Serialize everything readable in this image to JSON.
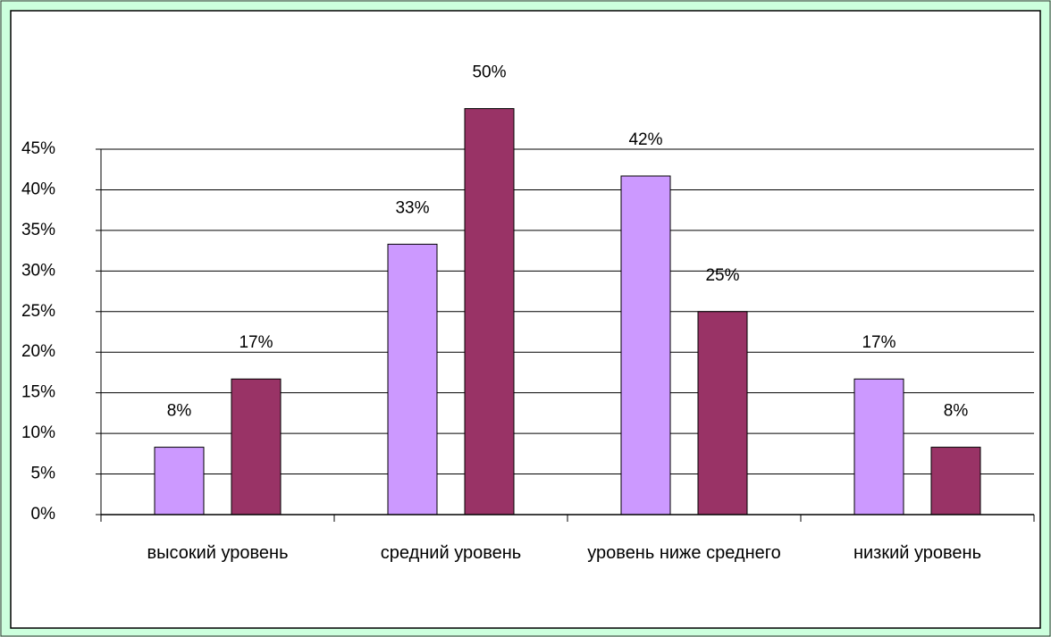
{
  "chart_data": {
    "type": "bar",
    "categories": [
      "высокий уровень",
      "средний уровень",
      "уровень ниже среднего",
      "низкий уровень"
    ],
    "series": [
      {
        "color": "#cc99ff",
        "values": [
          8.3,
          33.3,
          41.7,
          16.7
        ],
        "value_labels": [
          "8%",
          "33%",
          "42%",
          "17%"
        ]
      },
      {
        "color": "#993366",
        "values": [
          16.7,
          50,
          25,
          8.3
        ],
        "value_labels": [
          "17%",
          "50%",
          "25%",
          "8%"
        ]
      }
    ],
    "ylim": [
      0,
      45
    ],
    "yticks": [
      {
        "value": 0,
        "label": "0%"
      },
      {
        "value": 5,
        "label": "5%"
      },
      {
        "value": 10,
        "label": "10%"
      },
      {
        "value": 15,
        "label": "15%"
      },
      {
        "value": 20,
        "label": "20%"
      },
      {
        "value": 25,
        "label": "25%"
      },
      {
        "value": 30,
        "label": "30%"
      },
      {
        "value": 35,
        "label": "35%"
      },
      {
        "value": 40,
        "label": "40%"
      },
      {
        "value": 45,
        "label": "45%"
      }
    ],
    "grid": true
  }
}
